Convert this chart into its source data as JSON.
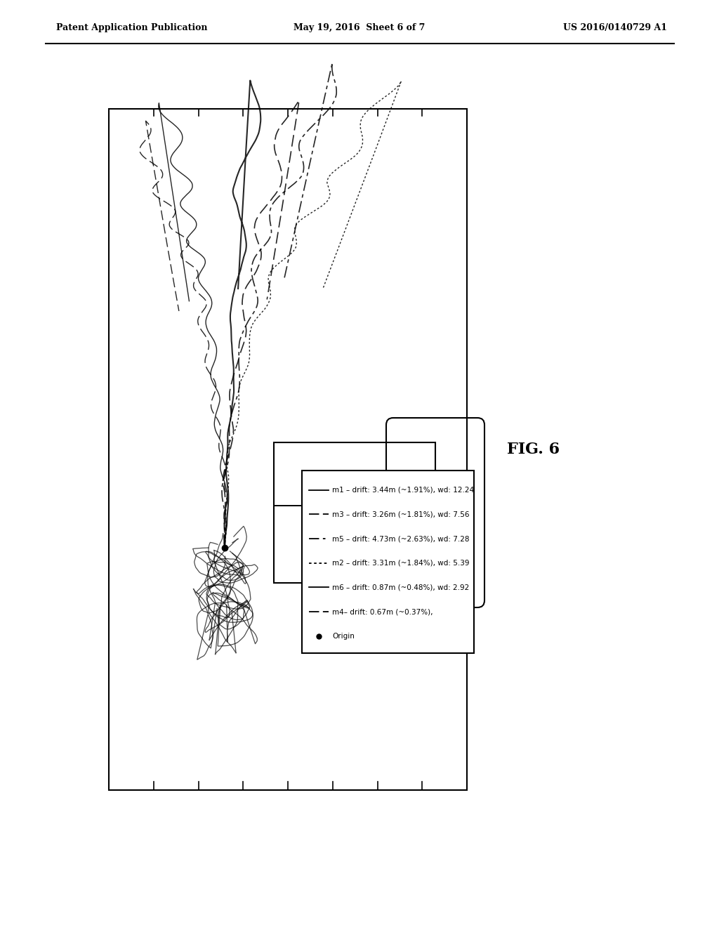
{
  "header_left": "Patent Application Publication",
  "header_mid": "May 19, 2016  Sheet 6 of 7",
  "header_right": "US 2016/0140729 A1",
  "fig_label": "FIG. 6",
  "legend_entries": [
    {
      "label": "m1 – drift: 3.44m (~1.91%), wd: 12.24",
      "linestyle": "solid"
    },
    {
      "label": "m3 – drift: 3.26m (~1.81%), wd: 7.56",
      "linestyle": "dashed"
    },
    {
      "label": "m5 – drift: 4.73m (~2.63%), wd: 7.28",
      "linestyle": "dashdot"
    },
    {
      "label": "m2 – drift: 3.31m (~1.84%), wd: 5.39",
      "linestyle": "dotted"
    },
    {
      "label": "m6 – drift: 0.87m (~0.48%), wd: 2.92",
      "linestyle": "solid"
    },
    {
      "label": "m4– drift: 0.67m (~0.37%),",
      "linestyle": "dashed"
    },
    {
      "label": "Origin",
      "linestyle": "marker"
    }
  ],
  "background_color": "#ffffff"
}
